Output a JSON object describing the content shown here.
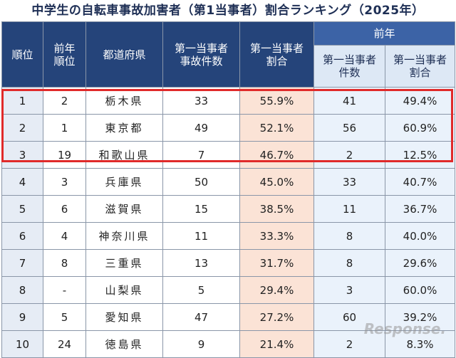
{
  "title": "中学生の自転車事故加害者（第1当事者）割合ランキング（2025年）",
  "headers": {
    "rank": "順位",
    "prev_rank": "前年\n順位",
    "prefecture": "都道府県",
    "cases": "第一当事者\n事故件数",
    "share": "第一当事者\n割合",
    "prev_group": "前年",
    "prev_cases": "第一当事者\n件数",
    "prev_share": "第一当事者\n割合"
  },
  "rows": [
    {
      "rank": "1",
      "prev_rank": "2",
      "prefecture": "栃木県",
      "cases": "33",
      "share": "55.9%",
      "prev_cases": "41",
      "prev_share": "49.4%"
    },
    {
      "rank": "2",
      "prev_rank": "1",
      "prefecture": "東京都",
      "cases": "49",
      "share": "52.1%",
      "prev_cases": "56",
      "prev_share": "60.9%"
    },
    {
      "rank": "3",
      "prev_rank": "19",
      "prefecture": "和歌山県",
      "cases": "7",
      "share": "46.7%",
      "prev_cases": "2",
      "prev_share": "12.5%"
    },
    {
      "rank": "4",
      "prev_rank": "3",
      "prefecture": "兵庫県",
      "cases": "50",
      "share": "45.0%",
      "prev_cases": "33",
      "prev_share": "40.7%"
    },
    {
      "rank": "5",
      "prev_rank": "6",
      "prefecture": "滋賀県",
      "cases": "15",
      "share": "38.5%",
      "prev_cases": "11",
      "prev_share": "36.7%"
    },
    {
      "rank": "6",
      "prev_rank": "4",
      "prefecture": "神奈川県",
      "cases": "11",
      "share": "33.3%",
      "prev_cases": "8",
      "prev_share": "40.0%"
    },
    {
      "rank": "7",
      "prev_rank": "8",
      "prefecture": "三重県",
      "cases": "13",
      "share": "31.7%",
      "prev_cases": "8",
      "prev_share": "29.6%"
    },
    {
      "rank": "8",
      "prev_rank": "-",
      "prefecture": "山梨県",
      "cases": "5",
      "share": "29.4%",
      "prev_cases": "3",
      "prev_share": "60.0%"
    },
    {
      "rank": "9",
      "prev_rank": "5",
      "prefecture": "愛知県",
      "cases": "47",
      "share": "27.2%",
      "prev_cases": "60",
      "prev_share": "39.2%"
    },
    {
      "rank": "10",
      "prev_rank": "24",
      "prefecture": "徳島県",
      "cases": "9",
      "share": "21.4%",
      "prev_cases": "2",
      "prev_share": "8.3%"
    }
  ],
  "watermark": "Response.",
  "colors": {
    "header": "#25447a",
    "highlight_border": "#e02a2a",
    "share_bg": "#fbe3d6",
    "prev_bg": "#eaf2fb"
  }
}
